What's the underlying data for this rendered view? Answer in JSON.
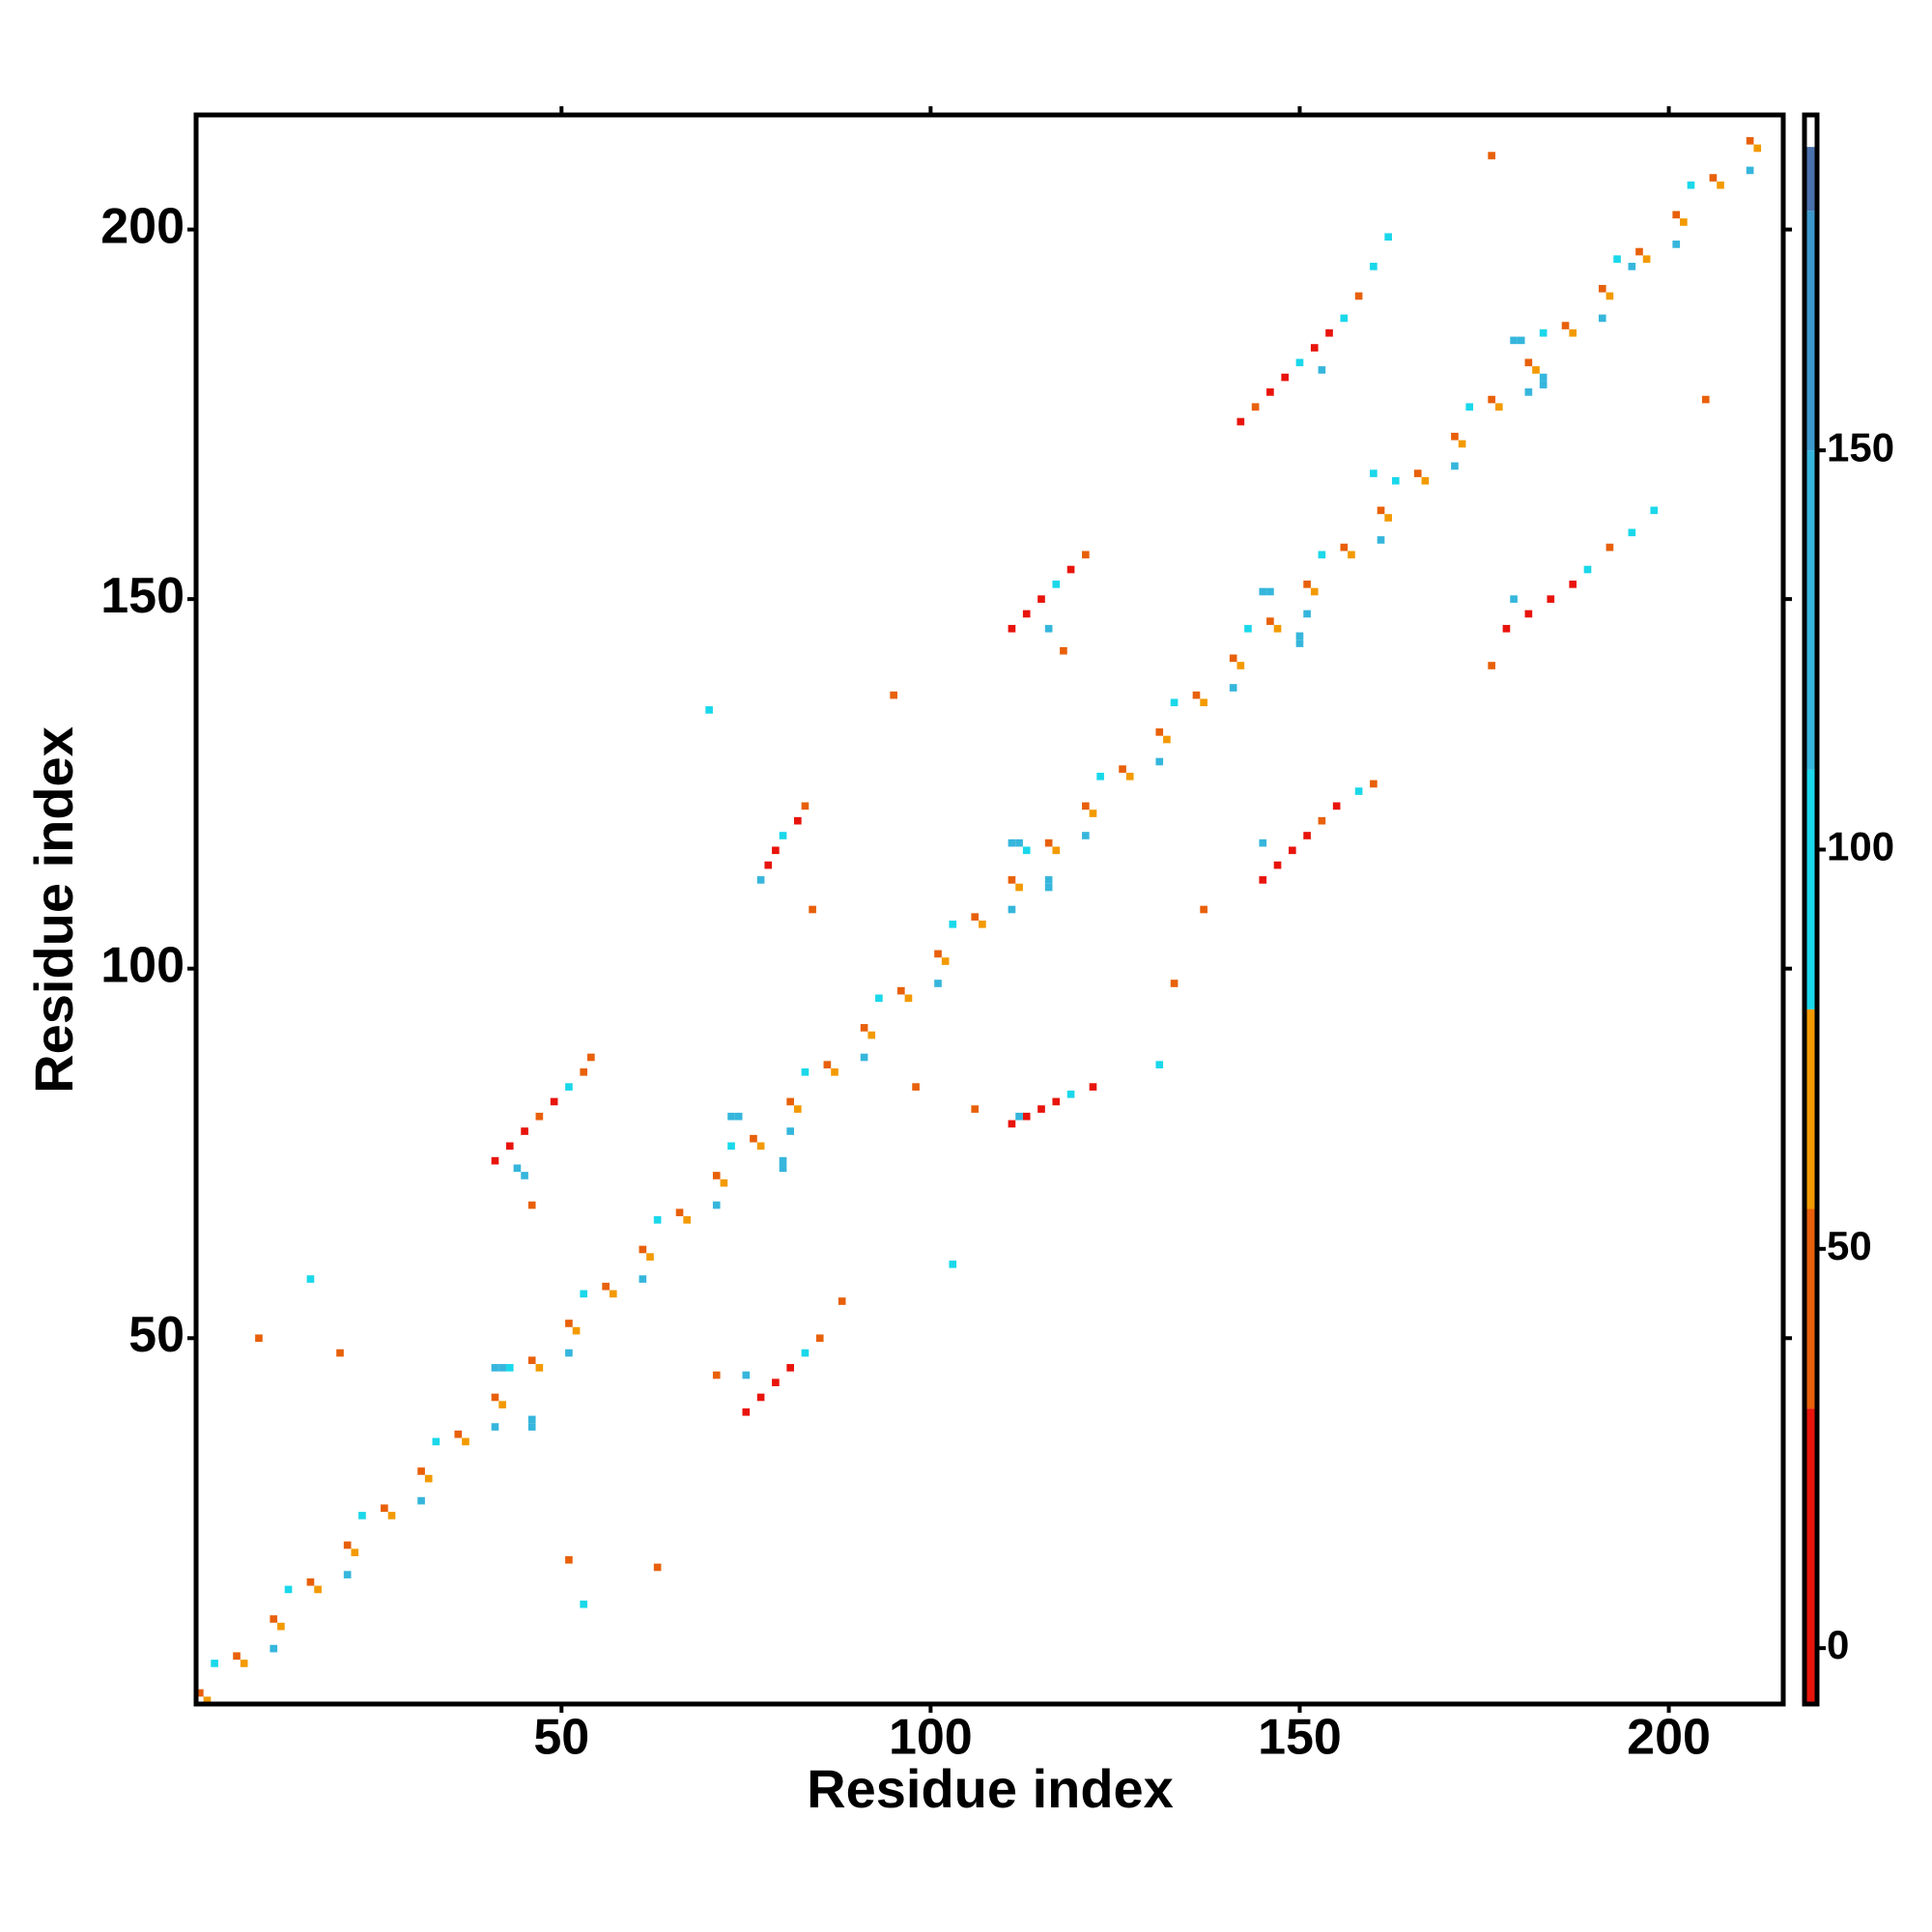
{
  "chart_data": {
    "type": "heatmap",
    "x_label": "Residue index",
    "y_label": "Residue index",
    "xlim": [
      0.5,
      215.5
    ],
    "ylim": [
      0.5,
      215.5
    ],
    "xticks": [
      50,
      100,
      150,
      200
    ],
    "yticks": [
      50,
      100,
      150,
      200
    ],
    "colorbar_lim": [
      -7,
      192
    ],
    "colorbar_ticks": [
      0,
      50,
      100,
      150
    ],
    "color_bands": [
      {
        "from": -7,
        "to": 30,
        "color": "#e8140c"
      },
      {
        "from": 30,
        "to": 55,
        "color": "#e8600a"
      },
      {
        "from": 55,
        "to": 80,
        "color": "#f39a00"
      },
      {
        "from": 80,
        "to": 110,
        "color": "#1ad8ea"
      },
      {
        "from": 110,
        "to": 150,
        "color": "#36b6dc"
      },
      {
        "from": 150,
        "to": 180,
        "color": "#3d98cc"
      },
      {
        "from": 180,
        "to": 188,
        "color": "#4a72ac"
      },
      {
        "from": 188,
        "to": 192,
        "color": "#ffffff"
      }
    ],
    "cells": [
      [
        1,
        2,
        45
      ],
      [
        6,
        7,
        45
      ],
      [
        11,
        12,
        45
      ],
      [
        16,
        17,
        45
      ],
      [
        21,
        22,
        45
      ],
      [
        26,
        27,
        45
      ],
      [
        31,
        32,
        45
      ],
      [
        36,
        37,
        45
      ],
      [
        41,
        42,
        45
      ],
      [
        46,
        47,
        45
      ],
      [
        51,
        52,
        45
      ],
      [
        56,
        57,
        45
      ],
      [
        61,
        62,
        45
      ],
      [
        66,
        67,
        45
      ],
      [
        71,
        72,
        45
      ],
      [
        76,
        77,
        45
      ],
      [
        81,
        82,
        45
      ],
      [
        86,
        87,
        45
      ],
      [
        91,
        92,
        45
      ],
      [
        96,
        97,
        45
      ],
      [
        101,
        102,
        45
      ],
      [
        106,
        107,
        45
      ],
      [
        111,
        112,
        45
      ],
      [
        116,
        117,
        45
      ],
      [
        121,
        122,
        45
      ],
      [
        126,
        127,
        45
      ],
      [
        131,
        132,
        45
      ],
      [
        136,
        137,
        45
      ],
      [
        141,
        142,
        45
      ],
      [
        146,
        147,
        45
      ],
      [
        151,
        152,
        45
      ],
      [
        156,
        157,
        45
      ],
      [
        161,
        162,
        45
      ],
      [
        166,
        167,
        45
      ],
      [
        171,
        172,
        45
      ],
      [
        176,
        177,
        45
      ],
      [
        181,
        182,
        45
      ],
      [
        186,
        187,
        45
      ],
      [
        191,
        192,
        45
      ],
      [
        196,
        197,
        45
      ],
      [
        201,
        202,
        45
      ],
      [
        206,
        207,
        45
      ],
      [
        211,
        212,
        45
      ],
      [
        2,
        1,
        65
      ],
      [
        7,
        6,
        65
      ],
      [
        12,
        11,
        65
      ],
      [
        17,
        16,
        65
      ],
      [
        22,
        21,
        65
      ],
      [
        27,
        26,
        65
      ],
      [
        32,
        31,
        65
      ],
      [
        37,
        36,
        65
      ],
      [
        42,
        41,
        65
      ],
      [
        47,
        46,
        65
      ],
      [
        52,
        51,
        65
      ],
      [
        57,
        56,
        65
      ],
      [
        62,
        61,
        65
      ],
      [
        67,
        66,
        65
      ],
      [
        72,
        71,
        65
      ],
      [
        77,
        76,
        65
      ],
      [
        82,
        81,
        65
      ],
      [
        87,
        86,
        65
      ],
      [
        92,
        91,
        65
      ],
      [
        97,
        96,
        65
      ],
      [
        102,
        101,
        65
      ],
      [
        107,
        106,
        65
      ],
      [
        112,
        111,
        65
      ],
      [
        117,
        116,
        65
      ],
      [
        122,
        121,
        65
      ],
      [
        127,
        126,
        65
      ],
      [
        132,
        131,
        65
      ],
      [
        137,
        136,
        65
      ],
      [
        142,
        141,
        65
      ],
      [
        147,
        146,
        65
      ],
      [
        152,
        151,
        65
      ],
      [
        157,
        156,
        65
      ],
      [
        162,
        161,
        65
      ],
      [
        167,
        166,
        65
      ],
      [
        172,
        171,
        65
      ],
      [
        177,
        176,
        65
      ],
      [
        182,
        181,
        65
      ],
      [
        187,
        186,
        65
      ],
      [
        192,
        191,
        65
      ],
      [
        197,
        196,
        65
      ],
      [
        202,
        201,
        65
      ],
      [
        207,
        206,
        65
      ],
      [
        212,
        211,
        65
      ],
      [
        3,
        6,
        95
      ],
      [
        13,
        16,
        95
      ],
      [
        23,
        26,
        95
      ],
      [
        33,
        36,
        95
      ],
      [
        43,
        46,
        95
      ],
      [
        53,
        56,
        95
      ],
      [
        63,
        66,
        95
      ],
      [
        73,
        76,
        95
      ],
      [
        83,
        86,
        95
      ],
      [
        93,
        96,
        95
      ],
      [
        103,
        106,
        95
      ],
      [
        113,
        116,
        95
      ],
      [
        123,
        126,
        95
      ],
      [
        133,
        136,
        95
      ],
      [
        143,
        146,
        95
      ],
      [
        153,
        156,
        95
      ],
      [
        163,
        166,
        95
      ],
      [
        173,
        176,
        95
      ],
      [
        183,
        186,
        95
      ],
      [
        193,
        196,
        95
      ],
      [
        203,
        206,
        95
      ],
      [
        11,
        8,
        125
      ],
      [
        21,
        18,
        125
      ],
      [
        31,
        28,
        125
      ],
      [
        41,
        38,
        125
      ],
      [
        51,
        48,
        125
      ],
      [
        61,
        58,
        125
      ],
      [
        71,
        68,
        125
      ],
      [
        81,
        78,
        125
      ],
      [
        91,
        88,
        125
      ],
      [
        101,
        98,
        125
      ],
      [
        111,
        108,
        125
      ],
      [
        121,
        118,
        125
      ],
      [
        131,
        128,
        125
      ],
      [
        141,
        138,
        125
      ],
      [
        151,
        148,
        125
      ],
      [
        161,
        158,
        125
      ],
      [
        171,
        168,
        125
      ],
      [
        181,
        178,
        125
      ],
      [
        191,
        188,
        125
      ],
      [
        201,
        198,
        125
      ],
      [
        211,
        208,
        125
      ],
      [
        41,
        74,
        10
      ],
      [
        43,
        76,
        10
      ],
      [
        45,
        78,
        10
      ],
      [
        47,
        80,
        45
      ],
      [
        49,
        82,
        10
      ],
      [
        51,
        84,
        95
      ],
      [
        53,
        86,
        45
      ],
      [
        54,
        88,
        45
      ],
      [
        44,
        73,
        140
      ],
      [
        45,
        72,
        140
      ],
      [
        46,
        68,
        45
      ],
      [
        78,
        114,
        10
      ],
      [
        79,
        116,
        10
      ],
      [
        80,
        118,
        95
      ],
      [
        82,
        120,
        10
      ],
      [
        83,
        122,
        45
      ],
      [
        77,
        112,
        140
      ],
      [
        84,
        108,
        45
      ],
      [
        111,
        146,
        10
      ],
      [
        113,
        148,
        10
      ],
      [
        115,
        150,
        10
      ],
      [
        117,
        152,
        95
      ],
      [
        119,
        154,
        10
      ],
      [
        121,
        156,
        45
      ],
      [
        116,
        146,
        140
      ],
      [
        118,
        143,
        45
      ],
      [
        142,
        174,
        10
      ],
      [
        144,
        176,
        45
      ],
      [
        146,
        178,
        10
      ],
      [
        148,
        180,
        10
      ],
      [
        150,
        182,
        95
      ],
      [
        152,
        184,
        10
      ],
      [
        154,
        186,
        10
      ],
      [
        156,
        188,
        95
      ],
      [
        158,
        191,
        45
      ],
      [
        160,
        195,
        95
      ],
      [
        162,
        199,
        95
      ],
      [
        153,
        181,
        140
      ],
      [
        75,
        40,
        10
      ],
      [
        77,
        42,
        10
      ],
      [
        79,
        44,
        10
      ],
      [
        81,
        46,
        10
      ],
      [
        83,
        48,
        95
      ],
      [
        85,
        50,
        45
      ],
      [
        88,
        55,
        45
      ],
      [
        75,
        45,
        140
      ],
      [
        71,
        45,
        45
      ],
      [
        111,
        79,
        10
      ],
      [
        113,
        80,
        10
      ],
      [
        115,
        81,
        10
      ],
      [
        117,
        82,
        10
      ],
      [
        119,
        83,
        95
      ],
      [
        122,
        84,
        10
      ],
      [
        112,
        80,
        140
      ],
      [
        106,
        81,
        45
      ],
      [
        145,
        112,
        10
      ],
      [
        147,
        114,
        10
      ],
      [
        149,
        116,
        10
      ],
      [
        151,
        118,
        10
      ],
      [
        153,
        120,
        45
      ],
      [
        155,
        122,
        10
      ],
      [
        158,
        124,
        95
      ],
      [
        160,
        125,
        45
      ],
      [
        145,
        117,
        140
      ],
      [
        137,
        108,
        45
      ],
      [
        178,
        146,
        10
      ],
      [
        181,
        148,
        10
      ],
      [
        184,
        150,
        10
      ],
      [
        187,
        152,
        10
      ],
      [
        189,
        154,
        95
      ],
      [
        192,
        157,
        45
      ],
      [
        195,
        159,
        95
      ],
      [
        198,
        162,
        95
      ],
      [
        179,
        150,
        140
      ],
      [
        176,
        141,
        45
      ],
      [
        41,
        46,
        140
      ],
      [
        42,
        46,
        140
      ],
      [
        46,
        38,
        140
      ],
      [
        46,
        39,
        140
      ],
      [
        73,
        80,
        140
      ],
      [
        74,
        80,
        140
      ],
      [
        80,
        74,
        140
      ],
      [
        80,
        73,
        140
      ],
      [
        111,
        117,
        140
      ],
      [
        112,
        117,
        140
      ],
      [
        116,
        112,
        140
      ],
      [
        116,
        111,
        140
      ],
      [
        145,
        151,
        140
      ],
      [
        146,
        151,
        140
      ],
      [
        150,
        145,
        140
      ],
      [
        150,
        144,
        140
      ],
      [
        179,
        185,
        140
      ],
      [
        180,
        185,
        140
      ],
      [
        183,
        180,
        140
      ],
      [
        183,
        179,
        140
      ],
      [
        195,
        195,
        120
      ],
      [
        16,
        58,
        95
      ],
      [
        9,
        50,
        45
      ],
      [
        20,
        48,
        45
      ],
      [
        51,
        20,
        45
      ],
      [
        53,
        14,
        95
      ],
      [
        63,
        19,
        45
      ],
      [
        98,
        84,
        45
      ],
      [
        103,
        60,
        95
      ],
      [
        131,
        87,
        95
      ],
      [
        133,
        98,
        45
      ],
      [
        70,
        135,
        95
      ],
      [
        95,
        137,
        45
      ],
      [
        160,
        167,
        95
      ],
      [
        205,
        177,
        45
      ],
      [
        176,
        210,
        45
      ]
    ]
  }
}
